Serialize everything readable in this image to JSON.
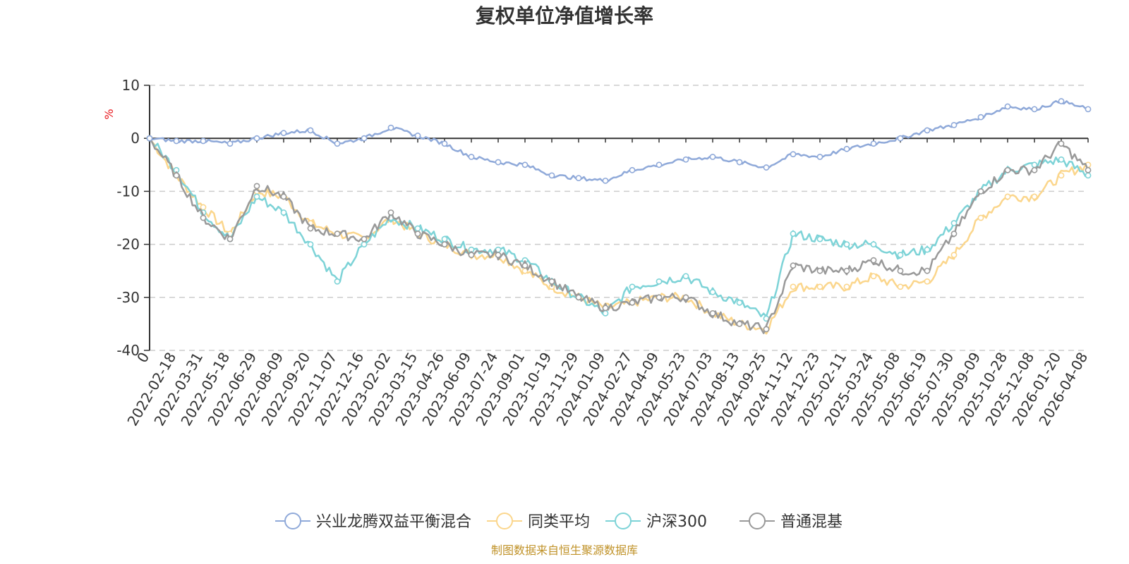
{
  "chart_data": {
    "type": "line",
    "title": "复权单位净值增长率",
    "ylabel": "%",
    "ylim": [
      -40,
      10
    ],
    "yticks": [
      "10",
      "0",
      "-10",
      "-20",
      "-30",
      "-40"
    ],
    "categories": [
      "0",
      "2022-02-18",
      "2022-03-31",
      "2022-05-18",
      "2022-06-29",
      "2022-08-09",
      "2022-09-20",
      "2022-11-07",
      "2022-12-16",
      "2023-02-02",
      "2023-03-15",
      "2023-04-26",
      "2023-06-09",
      "2023-07-24",
      "2023-09-01",
      "2023-10-19",
      "2023-11-29",
      "2024-01-09",
      "2024-02-27",
      "2024-04-09",
      "2024-05-23",
      "2024-07-03",
      "2024-08-13",
      "2024-09-25",
      "2024-11-12",
      "2024-12-23",
      "2025-02-11",
      "2025-03-24",
      "2025-05-08",
      "2025-06-19",
      "2025-07-30",
      "2025-09-09",
      "2025-10-28",
      "2025-12-08",
      "2026-01-20",
      "2026-04-08"
    ],
    "series": [
      {
        "name": "兴业龙腾双益平衡混合",
        "color": "#8fa9d9",
        "values": [
          0,
          -0.5,
          -0.5,
          -1,
          0,
          1,
          1.5,
          -1,
          0,
          2,
          0.5,
          -1,
          -3.5,
          -4.5,
          -5,
          -7,
          -7.5,
          -8,
          -6,
          -5,
          -4,
          -3.5,
          -4.5,
          -5.5,
          -3,
          -3.5,
          -2,
          -1,
          0,
          1.5,
          2.5,
          4,
          6,
          5.5,
          7,
          5.5
        ]
      },
      {
        "name": "同类平均",
        "color": "#fbd68c",
        "values": [
          0,
          -7,
          -13,
          -18,
          -10,
          -11,
          -16,
          -18,
          -19,
          -15,
          -18,
          -20,
          -22,
          -22,
          -25,
          -28,
          -30,
          -32,
          -31,
          -30,
          -30,
          -33,
          -35,
          -36,
          -28,
          -28,
          -28,
          -26,
          -28,
          -27,
          -22,
          -15,
          -11,
          -11,
          -7,
          -5
        ]
      },
      {
        "name": "沪深300",
        "color": "#7dd3d7",
        "values": [
          0,
          -6,
          -14,
          -19,
          -11,
          -14,
          -20,
          -27,
          -20,
          -15,
          -17,
          -19,
          -21,
          -21,
          -23,
          -27,
          -30,
          -33,
          -28,
          -27,
          -26,
          -29,
          -31,
          -34,
          -18,
          -19,
          -20,
          -20,
          -22,
          -21,
          -16,
          -10,
          -6,
          -5,
          -4,
          -7
        ]
      },
      {
        "name": "普通混基",
        "color": "#999999",
        "values": [
          0,
          -7,
          -15,
          -19,
          -9,
          -11,
          -17,
          -18,
          -19,
          -14,
          -18,
          -20,
          -22,
          -22,
          -24,
          -27,
          -30,
          -32,
          -31,
          -30,
          -30,
          -33,
          -35,
          -36,
          -24,
          -25,
          -25,
          -23,
          -25,
          -25,
          -18,
          -10,
          -6,
          -6,
          -1,
          -6
        ]
      }
    ],
    "legend_position": "bottom-center",
    "grid": true
  },
  "footer": {
    "source_text": "制图数据来自恒生聚源数据库",
    "source_color": "#c09228"
  },
  "unit_color": "#e8161c"
}
